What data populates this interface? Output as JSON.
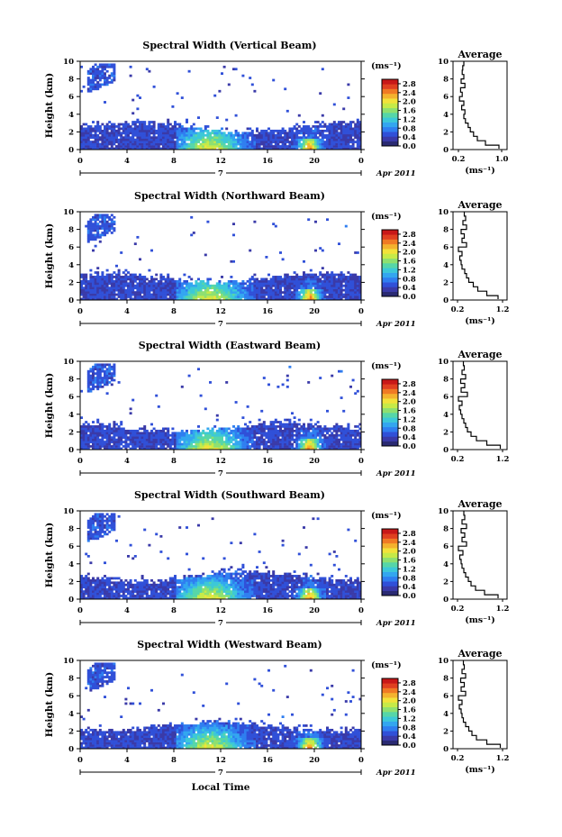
{
  "chart_data": [
    {
      "type": "heatmap",
      "title": "Spectral Width (Vertical Beam)",
      "ylabel": "Height (km)",
      "ylim": [
        0,
        10
      ],
      "yticks": [
        "0",
        "2",
        "4",
        "6",
        "8",
        "10"
      ],
      "xticks": [
        "0",
        "4",
        "8",
        "12",
        "16",
        "20",
        "0"
      ],
      "xlim": [
        0,
        24
      ],
      "date_marker": "7",
      "date_label": "Apr 2011",
      "colorbar": {
        "unit": "(ms⁻¹)",
        "ticks": [
          "0.0",
          "0.4",
          "0.8",
          "1.2",
          "1.6",
          "2.0",
          "2.4",
          "2.8"
        ],
        "range": [
          0,
          3.0
        ]
      },
      "average": {
        "title": "Average",
        "xticks": [
          "0.2",
          "1.0"
        ],
        "xlabel": "(ms⁻¹)",
        "xlim": [
          0.1,
          1.1
        ],
        "ylim": [
          0,
          10
        ],
        "height": [
          0.1,
          0.5,
          1.0,
          1.5,
          2.0,
          2.5,
          3.0,
          3.5,
          4.0,
          4.5,
          5.0,
          5.5,
          6.0,
          6.5,
          7.0,
          7.5,
          8.0,
          8.5,
          9.0,
          9.5
        ],
        "value": [
          0.95,
          0.7,
          0.55,
          0.48,
          0.42,
          0.38,
          0.33,
          0.3,
          0.32,
          0.26,
          0.3,
          0.22,
          0.27,
          0.24,
          0.32,
          0.25,
          0.3,
          0.27,
          0.28,
          0.3
        ]
      }
    },
    {
      "type": "heatmap",
      "title": "Spectral Width (Northward Beam)",
      "ylabel": "Height (km)",
      "ylim": [
        0,
        10
      ],
      "yticks": [
        "0",
        "2",
        "4",
        "6",
        "8",
        "10"
      ],
      "xticks": [
        "0",
        "4",
        "8",
        "12",
        "16",
        "20",
        "0"
      ],
      "xlim": [
        0,
        24
      ],
      "date_marker": "7",
      "date_label": "Apr 2011",
      "colorbar": {
        "unit": "(ms⁻¹)",
        "ticks": [
          "0.0",
          "0.4",
          "0.8",
          "1.2",
          "1.6",
          "2.0",
          "2.4",
          "2.8"
        ],
        "range": [
          0,
          3.0
        ]
      },
      "average": {
        "title": "Average",
        "xticks": [
          "0.2",
          "1.2"
        ],
        "xlabel": "(ms⁻¹)",
        "xlim": [
          0.1,
          1.3
        ],
        "ylim": [
          0,
          10
        ],
        "height": [
          0.1,
          0.5,
          1.0,
          1.5,
          2.0,
          2.5,
          3.0,
          3.5,
          4.0,
          4.5,
          5.0,
          5.5,
          6.0,
          6.5,
          7.0,
          7.5,
          8.0,
          8.5,
          9.0,
          9.5
        ],
        "value": [
          1.1,
          0.85,
          0.65,
          0.55,
          0.45,
          0.4,
          0.36,
          0.3,
          0.28,
          0.25,
          0.3,
          0.22,
          0.4,
          0.3,
          0.35,
          0.28,
          0.4,
          0.32,
          0.38,
          0.35
        ]
      }
    },
    {
      "type": "heatmap",
      "title": "Spectral Width (Eastward Beam)",
      "ylabel": "Height (km)",
      "ylim": [
        0,
        10
      ],
      "yticks": [
        "0",
        "2",
        "4",
        "6",
        "8",
        "10"
      ],
      "xticks": [
        "0",
        "4",
        "8",
        "12",
        "16",
        "20",
        "0"
      ],
      "xlim": [
        0,
        24
      ],
      "date_marker": "7",
      "date_label": "Apr 2011",
      "colorbar": {
        "unit": "(ms⁻¹)",
        "ticks": [
          "0.0",
          "0.4",
          "0.8",
          "1.2",
          "1.6",
          "2.0",
          "2.4",
          "2.8"
        ],
        "range": [
          0,
          3.0
        ]
      },
      "average": {
        "title": "Average",
        "xticks": [
          "0.2",
          "1.2"
        ],
        "xlabel": "",
        "xlim": [
          0.1,
          1.3
        ],
        "ylim": [
          0,
          10
        ],
        "height": [
          0.1,
          0.5,
          1.0,
          1.5,
          2.0,
          2.5,
          3.0,
          3.5,
          4.0,
          4.5,
          5.0,
          5.5,
          6.0,
          6.5,
          7.0,
          7.5,
          8.0,
          8.5,
          9.0,
          9.5
        ],
        "value": [
          1.15,
          0.85,
          0.62,
          0.5,
          0.42,
          0.38,
          0.34,
          0.3,
          0.27,
          0.24,
          0.3,
          0.22,
          0.42,
          0.28,
          0.36,
          0.27,
          0.38,
          0.3,
          0.35,
          0.33
        ]
      }
    },
    {
      "type": "heatmap",
      "title": "Spectral Width (Southward Beam)",
      "ylabel": "Height (km)",
      "ylim": [
        0,
        10
      ],
      "yticks": [
        "0",
        "2",
        "4",
        "6",
        "8",
        "10"
      ],
      "xticks": [
        "0",
        "4",
        "8",
        "12",
        "16",
        "20",
        "0"
      ],
      "xlim": [
        0,
        24
      ],
      "date_marker": "7",
      "date_label": "Apr 2011",
      "colorbar": {
        "unit": "(ms⁻¹)",
        "ticks": [
          "0.0",
          "0.4",
          "0.8",
          "1.2",
          "1.6",
          "2.0",
          "2.4",
          "2.8"
        ],
        "range": [
          0,
          3.0
        ]
      },
      "average": {
        "title": "Average",
        "xticks": [
          "0.2",
          "1.2"
        ],
        "xlabel": "(ms⁻¹)",
        "xlim": [
          0.1,
          1.3
        ],
        "ylim": [
          0,
          10
        ],
        "height": [
          0.1,
          0.5,
          1.0,
          1.5,
          2.0,
          2.5,
          3.0,
          3.5,
          4.0,
          4.5,
          5.0,
          5.5,
          6.0,
          6.5,
          7.0,
          7.5,
          8.0,
          8.5,
          9.0,
          9.5
        ],
        "value": [
          1.1,
          0.8,
          0.6,
          0.5,
          0.44,
          0.38,
          0.34,
          0.3,
          0.28,
          0.25,
          0.32,
          0.22,
          0.4,
          0.3,
          0.36,
          0.28,
          0.4,
          0.3,
          0.36,
          0.34
        ]
      }
    },
    {
      "type": "heatmap",
      "title": "Spectral Width (Westward Beam)",
      "ylabel": "Height (km)",
      "ylim": [
        0,
        10
      ],
      "yticks": [
        "0",
        "2",
        "4",
        "6",
        "8",
        "10"
      ],
      "xticks": [
        "0",
        "4",
        "8",
        "12",
        "16",
        "20",
        "0"
      ],
      "xlim": [
        0,
        24
      ],
      "date_marker": "7",
      "date_label": "Apr 2011",
      "xlabel": "Local Time",
      "colorbar": {
        "unit": "(ms⁻¹)",
        "ticks": [
          "0.0",
          "0.4",
          "0.8",
          "1.2",
          "1.6",
          "2.0",
          "2.4",
          "2.8"
        ],
        "range": [
          0,
          3.0
        ]
      },
      "average": {
        "title": "Average",
        "xticks": [
          "0.2",
          "1.2"
        ],
        "xlabel": "(ms⁻¹)",
        "xlim": [
          0.1,
          1.3
        ],
        "ylim": [
          0,
          10
        ],
        "height": [
          0.1,
          0.5,
          1.0,
          1.5,
          2.0,
          2.5,
          3.0,
          3.5,
          4.0,
          4.5,
          5.0,
          5.5,
          6.0,
          6.5,
          7.0,
          7.5,
          8.0,
          8.5,
          9.0,
          9.5
        ],
        "value": [
          1.15,
          0.85,
          0.62,
          0.52,
          0.45,
          0.38,
          0.33,
          0.3,
          0.28,
          0.24,
          0.3,
          0.22,
          0.38,
          0.28,
          0.35,
          0.27,
          0.38,
          0.3,
          0.35,
          0.33
        ]
      }
    }
  ],
  "colors": {
    "scale": [
      "#2a2a72",
      "#3a3aa8",
      "#3050d8",
      "#2f7ef0",
      "#33a6f0",
      "#3cc8d8",
      "#56d6a8",
      "#8ee070",
      "#c6ea48",
      "#f2e23a",
      "#f4b22e",
      "#f07a24",
      "#e04020",
      "#c81818"
    ]
  }
}
